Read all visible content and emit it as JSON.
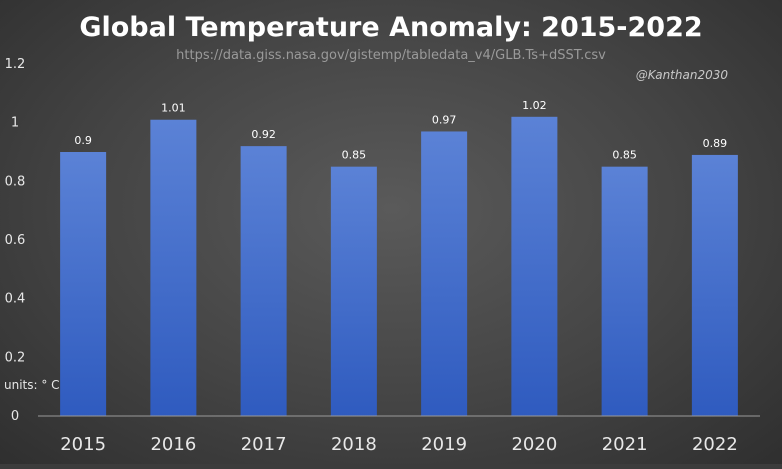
{
  "chart_data": {
    "type": "bar",
    "title": "Global Temperature Anomaly: 2015-2022",
    "subtitle": "https://data.giss.nasa.gov/gistemp/tabledata_v4/GLB.Ts+dSST.csv",
    "credit": "@Kanthan2030",
    "units_label": "units: ° C",
    "categories": [
      "2015",
      "2016",
      "2017",
      "2018",
      "2019",
      "2020",
      "2021",
      "2022"
    ],
    "values": [
      0.9,
      1.01,
      0.92,
      0.85,
      0.97,
      1.02,
      0.85,
      0.89
    ],
    "data_labels": [
      "0.9",
      "1.01",
      "0.92",
      "0.85",
      "0.97",
      "1.02",
      "0.85",
      "0.89"
    ],
    "yticks": [
      "0",
      "0.2",
      "0.4",
      "0.6",
      "0.8",
      "1",
      "1.2"
    ],
    "ylim": [
      0,
      1.2
    ],
    "grid": false,
    "legend": "none",
    "colors": {
      "bar_top": "#5b82d6",
      "bar_bottom": "#2f5bbf",
      "text": "#ffffff",
      "tick_text": "#e8e8e8",
      "subtitle_text": "#9a9a9a",
      "credit_text": "#c8c8c8",
      "axis_line": "#9a9a9a"
    }
  }
}
